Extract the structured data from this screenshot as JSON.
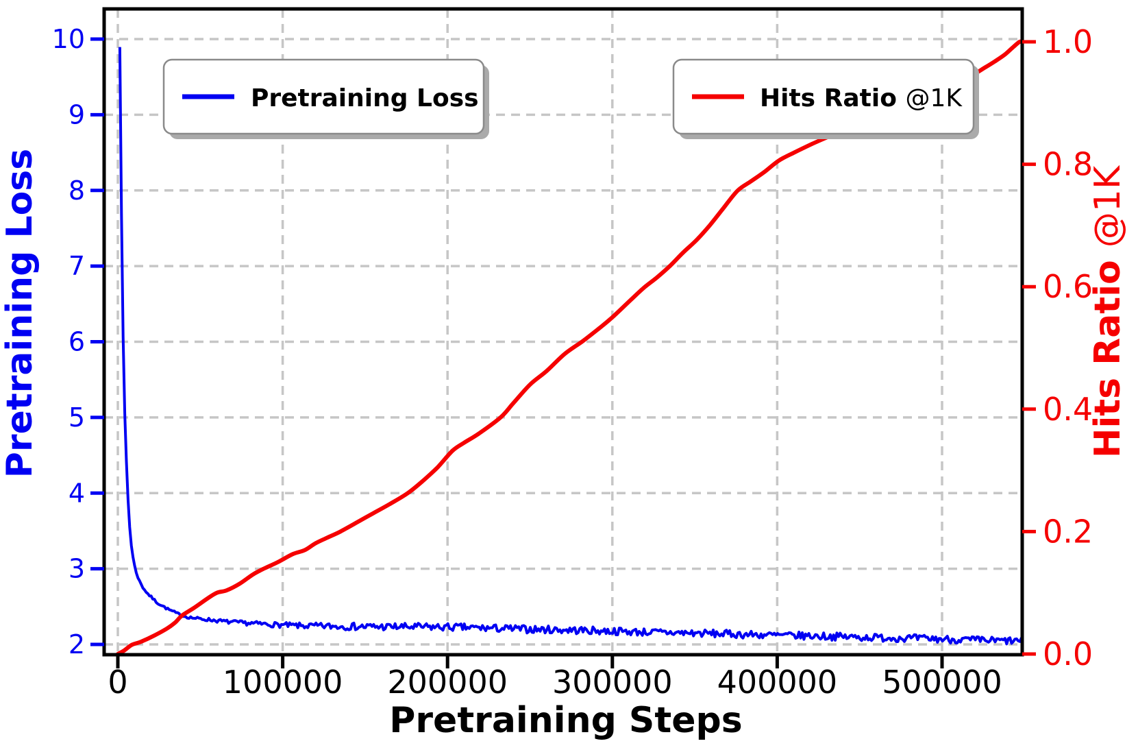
{
  "chart_data": {
    "type": "line",
    "title": "",
    "xlabel": "Pretraining Steps",
    "ylabel_left": "Pretraining Loss",
    "ylabel_right": "Hits Ratio @1K",
    "ylabel_right_bold": "Hits Ratio ",
    "ylabel_right_light": "@1K",
    "x_ticks": [
      0,
      100000,
      200000,
      300000,
      400000,
      500000
    ],
    "yleft_ticks": [
      2,
      3,
      4,
      5,
      6,
      7,
      8,
      9,
      10
    ],
    "yright_ticks": [
      0.0,
      0.2,
      0.4,
      0.6,
      0.8,
      1.0
    ],
    "xlim": [
      -9000,
      549000
    ],
    "ylim_left": [
      1.86,
      10.43
    ],
    "ylim_right": [
      0.0,
      1.054
    ],
    "grid": true,
    "grid_style": "dashed",
    "legend_position": [
      "upper left",
      "upper right"
    ],
    "colors": {
      "loss_line": "#0000f2",
      "ratio_line": "#f50000",
      "grid": "#c6c6c6",
      "spine": "#000000",
      "legend_edge": "#8a8a8a",
      "legend_shadow": "#aaaaaa",
      "legend_bg": "#ffffff"
    },
    "legend_entries": [
      {
        "label_bold": "Pretraining Loss",
        "label_light": ""
      },
      {
        "label_bold": "Hits Ratio ",
        "label_light": "@1K"
      }
    ],
    "series": [
      {
        "name": "Pretraining Loss",
        "axis": "left",
        "color": "#0000f2",
        "noise_band": 0.05,
        "points": [
          [
            1200,
            9.91
          ],
          [
            1500,
            9.3
          ],
          [
            1800,
            8.6
          ],
          [
            2100,
            7.9
          ],
          [
            2400,
            7.3
          ],
          [
            2800,
            6.6
          ],
          [
            3200,
            6.05
          ],
          [
            3700,
            5.5
          ],
          [
            4200,
            5.05
          ],
          [
            4800,
            4.65
          ],
          [
            5400,
            4.3
          ],
          [
            6000,
            4.0
          ],
          [
            6600,
            3.75
          ],
          [
            7200,
            3.55
          ],
          [
            8000,
            3.35
          ],
          [
            9000,
            3.18
          ],
          [
            10000,
            3.05
          ],
          [
            11500,
            2.93
          ],
          [
            13000,
            2.84
          ],
          [
            15000,
            2.76
          ],
          [
            17000,
            2.7
          ],
          [
            19000,
            2.65
          ],
          [
            21000,
            2.61
          ],
          [
            24000,
            2.55
          ],
          [
            27000,
            2.51
          ],
          [
            30000,
            2.47
          ],
          [
            33000,
            2.44
          ],
          [
            36000,
            2.41
          ],
          [
            39000,
            2.38
          ],
          [
            43000,
            2.36
          ],
          [
            47000,
            2.345
          ],
          [
            51000,
            2.335
          ],
          [
            56000,
            2.325
          ],
          [
            60000,
            2.315
          ],
          [
            66000,
            2.3
          ],
          [
            72000,
            2.29
          ],
          [
            80000,
            2.28
          ],
          [
            88000,
            2.27
          ],
          [
            96000,
            2.26
          ],
          [
            105000,
            2.25
          ],
          [
            113000,
            2.245
          ],
          [
            130000,
            2.24
          ],
          [
            150000,
            2.235
          ],
          [
            170000,
            2.232
          ],
          [
            190000,
            2.23
          ],
          [
            203000,
            2.228
          ],
          [
            225000,
            2.215
          ],
          [
            250000,
            2.2
          ],
          [
            275000,
            2.19
          ],
          [
            300000,
            2.175
          ],
          [
            325000,
            2.16
          ],
          [
            350000,
            2.15
          ],
          [
            375000,
            2.135
          ],
          [
            400000,
            2.12
          ],
          [
            425000,
            2.11
          ],
          [
            450000,
            2.095
          ],
          [
            475000,
            2.085
          ],
          [
            500000,
            2.07
          ],
          [
            515000,
            2.06
          ],
          [
            530000,
            2.05
          ],
          [
            549000,
            2.045
          ]
        ]
      },
      {
        "name": "Hits Ratio @1K",
        "axis": "right",
        "color": "#f50000",
        "noise_band": 0,
        "points": [
          [
            0,
            0.0
          ],
          [
            4000,
            0.006
          ],
          [
            8500,
            0.015
          ],
          [
            14000,
            0.02
          ],
          [
            22000,
            0.03
          ],
          [
            30000,
            0.042
          ],
          [
            35000,
            0.052
          ],
          [
            39000,
            0.063
          ],
          [
            46000,
            0.075
          ],
          [
            54000,
            0.09
          ],
          [
            60000,
            0.1
          ],
          [
            66000,
            0.104
          ],
          [
            74000,
            0.115
          ],
          [
            82000,
            0.13
          ],
          [
            89000,
            0.14
          ],
          [
            97000,
            0.15
          ],
          [
            106000,
            0.163
          ],
          [
            113600,
            0.17
          ],
          [
            120000,
            0.181
          ],
          [
            127000,
            0.19
          ],
          [
            135000,
            0.2
          ],
          [
            145000,
            0.215
          ],
          [
            155000,
            0.23
          ],
          [
            165000,
            0.245
          ],
          [
            176000,
            0.263
          ],
          [
            186000,
            0.285
          ],
          [
            194000,
            0.305
          ],
          [
            203000,
            0.332
          ],
          [
            210000,
            0.345
          ],
          [
            219000,
            0.36
          ],
          [
            232000,
            0.386
          ],
          [
            240000,
            0.41
          ],
          [
            250000,
            0.44
          ],
          [
            260000,
            0.462
          ],
          [
            271000,
            0.49
          ],
          [
            282000,
            0.511
          ],
          [
            292000,
            0.532
          ],
          [
            300000,
            0.55
          ],
          [
            311000,
            0.578
          ],
          [
            319000,
            0.598
          ],
          [
            327000,
            0.615
          ],
          [
            335000,
            0.634
          ],
          [
            343000,
            0.656
          ],
          [
            351000,
            0.676
          ],
          [
            359000,
            0.7
          ],
          [
            367000,
            0.727
          ],
          [
            376000,
            0.757
          ],
          [
            384000,
            0.772
          ],
          [
            392000,
            0.787
          ],
          [
            401000,
            0.806
          ],
          [
            411000,
            0.82
          ],
          [
            421000,
            0.833
          ],
          [
            431000,
            0.845
          ],
          [
            441000,
            0.857
          ],
          [
            451000,
            0.872
          ],
          [
            461000,
            0.886
          ],
          [
            471000,
            0.9
          ],
          [
            481000,
            0.915
          ],
          [
            491000,
            0.928
          ],
          [
            501000,
            0.937
          ],
          [
            511000,
            0.943
          ],
          [
            519000,
            0.947
          ],
          [
            526000,
            0.958
          ],
          [
            532000,
            0.968
          ],
          [
            538000,
            0.979
          ],
          [
            543000,
            0.991
          ],
          [
            547000,
            1.0
          ],
          [
            549000,
            1.0
          ]
        ]
      }
    ]
  }
}
